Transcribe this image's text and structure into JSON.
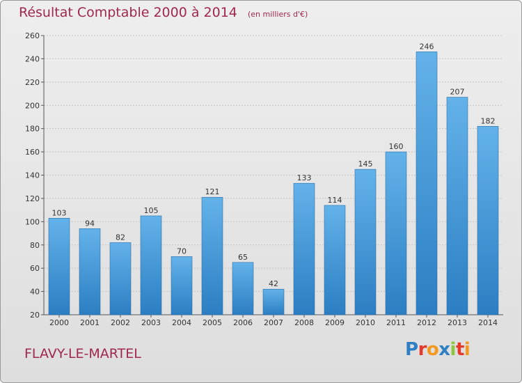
{
  "header": {
    "title": "Résultat Comptable 2000 à 2014",
    "subtitle": "(en milliers d'€)"
  },
  "footer": {
    "town": "FLAVY-LE-MARTEL",
    "brand": {
      "text": "Proxiti",
      "letters": [
        {
          "ch": "P",
          "color": "#2e7fc4"
        },
        {
          "ch": "r",
          "color": "#e5392b"
        },
        {
          "ch": "o",
          "color": "#f39a1e"
        },
        {
          "ch": "x",
          "color": "#2e7fc4"
        },
        {
          "ch": "i",
          "color": "#8cc63f"
        },
        {
          "ch": "t",
          "color": "#e5392b"
        },
        {
          "ch": "i",
          "color": "#f39a1e"
        }
      ]
    }
  },
  "colors": {
    "bar_top": "#63b2ea",
    "bar_bottom": "#2c7ec2",
    "title": "#a0284d"
  },
  "chart_data": {
    "type": "bar",
    "title": "Résultat Comptable 2000 à 2014",
    "subtitle": "(en milliers d'€)",
    "xlabel": "",
    "ylabel": "",
    "categories": [
      "2000",
      "2001",
      "2002",
      "2003",
      "2004",
      "2005",
      "2006",
      "2007",
      "2008",
      "2009",
      "2010",
      "2011",
      "2012",
      "2013",
      "2014"
    ],
    "values": [
      103,
      94,
      82,
      105,
      70,
      121,
      65,
      42,
      133,
      114,
      145,
      160,
      246,
      207,
      182
    ],
    "ylim": [
      20,
      260
    ],
    "yticks": [
      20,
      40,
      60,
      80,
      100,
      120,
      140,
      160,
      180,
      200,
      220,
      240,
      260
    ],
    "grid": true,
    "data_labels": true
  }
}
